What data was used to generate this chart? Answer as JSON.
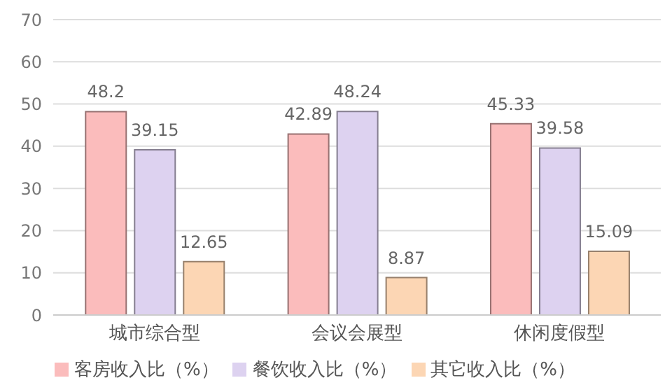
{
  "chart_data": {
    "type": "bar",
    "categories": [
      "城市综合型",
      "会议会展型",
      "休闲度假型"
    ],
    "series": [
      {
        "name": "客房收入比（%）",
        "color": "#fbbcbc",
        "values": [
          48.2,
          42.89,
          45.33
        ]
      },
      {
        "name": "餐饮收入比（%）",
        "color": "#ddd2f0",
        "values": [
          39.15,
          48.24,
          39.58
        ]
      },
      {
        "name": "其它收入比（%）",
        "color": "#fcd6b4",
        "values": [
          12.65,
          8.87,
          15.09
        ]
      }
    ],
    "ylim": [
      0,
      70
    ],
    "yticks": [
      0,
      10,
      20,
      30,
      40,
      50,
      60,
      70
    ],
    "grid": "y",
    "legend": "bottom",
    "data_labels": true
  }
}
